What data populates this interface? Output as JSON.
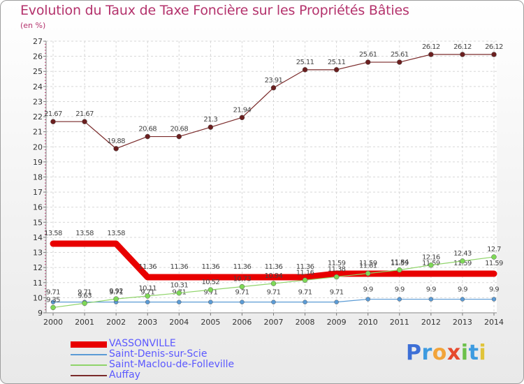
{
  "header": {
    "title": "Evolution du Taux de Taxe Foncière sur les Propriétés Bâties",
    "unit": "(en %)"
  },
  "logo": {
    "letters": [
      "P",
      "r",
      "o",
      "x",
      "i",
      "t",
      "i"
    ],
    "colors": [
      "#3d6fd6",
      "#3d9be0",
      "#f2a43a",
      "#e64a2e",
      "#6cc04a",
      "#3d9be0",
      "#e0c43a"
    ]
  },
  "chart_data": {
    "type": "line",
    "title": "Evolution du Taux de Taxe Foncière sur les Propriétés Bâties",
    "ylabel": "(en %)",
    "xlabel": "",
    "x": [
      "2000",
      "2001",
      "2002",
      "2003",
      "2004",
      "2005",
      "2006",
      "2007",
      "2008",
      "2009",
      "2010",
      "2011",
      "2012",
      "2013",
      "2014"
    ],
    "ylim": [
      9,
      27
    ],
    "yticks": [
      "9",
      "10",
      "11",
      "12",
      "13",
      "14",
      "15",
      "16",
      "17",
      "18",
      "19",
      "20",
      "21",
      "22",
      "23",
      "24",
      "25",
      "26",
      "27"
    ],
    "grid": true,
    "series": [
      {
        "name": "VASSONVILLE",
        "color": "#e80000",
        "values": [
          13.58,
          13.58,
          13.58,
          11.36,
          11.36,
          11.36,
          11.36,
          11.36,
          11.36,
          11.59,
          11.59,
          11.59,
          11.59,
          11.59,
          11.59
        ],
        "labels": [
          "13.58",
          "13.58",
          "13.58",
          "11.36",
          "11.36",
          "11.36",
          "11.36",
          "11.36",
          "11.36",
          "11.59",
          "11.59",
          "11.59",
          "11.59",
          "11.59",
          "11.59"
        ]
      },
      {
        "name": "Saint-Denis-sur-Scie",
        "color": "#5b9bd5",
        "values": [
          9.71,
          9.71,
          9.71,
          9.71,
          9.71,
          9.71,
          9.71,
          9.71,
          9.71,
          9.71,
          9.9,
          9.9,
          9.9,
          9.9,
          9.9
        ],
        "labels": [
          "9.71",
          "9.71",
          "9.71",
          "9.71",
          "9.71",
          "9.71",
          "9.71",
          "9.71",
          "9.71",
          "9.71",
          "9.9",
          "9.9",
          "9.9",
          "9.9",
          "9.9"
        ]
      },
      {
        "name": "Saint-Maclou-de-Folleville",
        "color": "#8fd46a",
        "values": [
          9.35,
          9.63,
          9.92,
          10.11,
          10.31,
          10.52,
          10.73,
          10.94,
          11.16,
          11.38,
          11.61,
          11.84,
          12.16,
          12.43,
          12.7
        ],
        "labels": [
          "9.35",
          "9.63",
          "9.92",
          "10.11",
          "10.31",
          "10.52",
          "10.73",
          "10.94",
          "11.16",
          "11.38",
          "11.61",
          "11.84",
          "12.16",
          "12.43",
          "12.7"
        ]
      },
      {
        "name": "Auffay",
        "color": "#7a2a2a",
        "values": [
          21.67,
          21.67,
          19.88,
          20.68,
          20.68,
          21.3,
          21.94,
          23.91,
          25.11,
          25.11,
          25.61,
          25.61,
          26.12,
          26.12,
          26.12
        ],
        "labels": [
          "21.67",
          "21.67",
          "19.88",
          "20.68",
          "20.68",
          "21.3",
          "21.94",
          "23.91",
          "25.11",
          "25.11",
          "25.61",
          "25.61",
          "26.12",
          "26.12",
          "26.12"
        ]
      }
    ]
  }
}
